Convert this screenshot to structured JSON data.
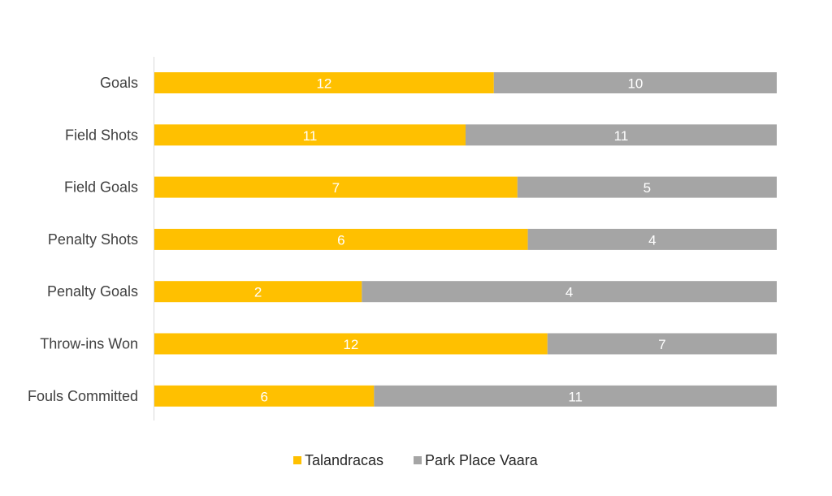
{
  "chart_data": {
    "type": "bar",
    "orientation": "horizontal",
    "stacked": "100%",
    "title": "",
    "xlabel": "",
    "ylabel": "",
    "categories": [
      "Goals",
      "Field Shots",
      "Field Goals",
      "Penalty Shots",
      "Penalty Goals",
      "Throw-ins Won",
      "Fouls Committed"
    ],
    "series": [
      {
        "name": "Talandracas",
        "color": "#FFC000",
        "values": [
          12,
          11,
          7,
          6,
          2,
          12,
          6
        ]
      },
      {
        "name": "Park Place Vaara",
        "color": "#A5A5A5",
        "values": [
          10,
          11,
          5,
          4,
          4,
          7,
          11
        ]
      }
    ],
    "data_labels": true,
    "grid": false,
    "legend_position": "bottom"
  },
  "colors": {
    "axis_line": "#D9D9D9",
    "data_label_text": "#FFFFFF",
    "category_text": "#404040",
    "legend_text": "#262626"
  }
}
